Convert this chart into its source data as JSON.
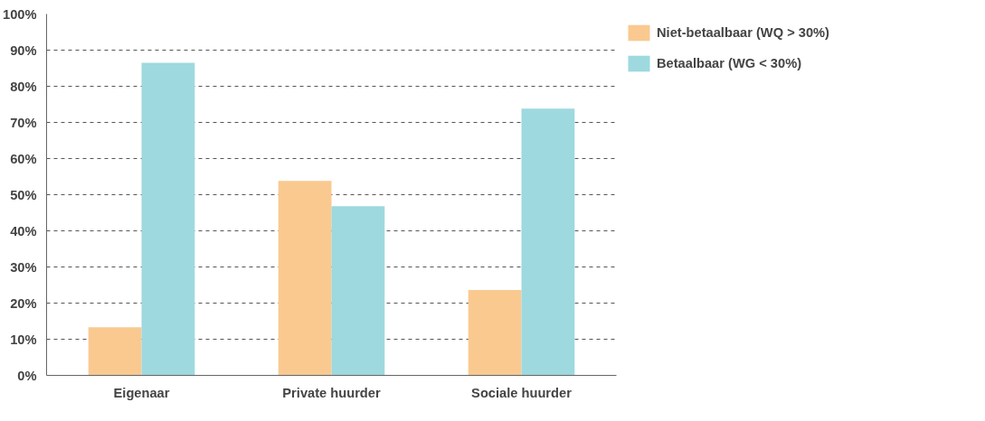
{
  "chart_data": {
    "type": "bar",
    "categories": [
      "Eigenaar",
      "Private huurder",
      "Sociale huurder"
    ],
    "series": [
      {
        "name": "Niet-betaalbaar (WQ > 30%)",
        "color": "#f9c990",
        "values": [
          13.3,
          53.8,
          23.6
        ]
      },
      {
        "name": "Betaalbaar (WG < 30%)",
        "color": "#9dd9df",
        "values": [
          86.5,
          46.8,
          73.8
        ]
      }
    ],
    "ylim": [
      0,
      100
    ],
    "yticks": [
      {
        "value": 0,
        "label": "0%"
      },
      {
        "value": 10,
        "label": "10%"
      },
      {
        "value": 20,
        "label": "20%"
      },
      {
        "value": 30,
        "label": "30%"
      },
      {
        "value": 40,
        "label": "40%"
      },
      {
        "value": 50,
        "label": "50%"
      },
      {
        "value": 60,
        "label": "60%"
      },
      {
        "value": 70,
        "label": "70%"
      },
      {
        "value": 80,
        "label": "80%"
      },
      {
        "value": 90,
        "label": "90%"
      },
      {
        "value": 100,
        "label": "100%"
      }
    ],
    "grid": "y",
    "legend": "top right"
  }
}
